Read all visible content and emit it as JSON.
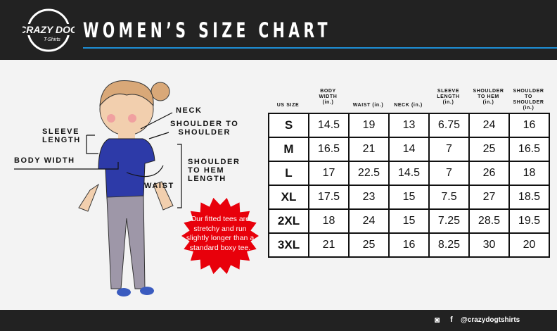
{
  "header": {
    "title": "WOMEN’S SIZE CHART",
    "logo_text": "CRAZY DOG T-Shirts"
  },
  "diagram": {
    "labels": {
      "neck": "NECK",
      "shoulder_to_shoulder": [
        "SHOULDER TO",
        "SHOULDER"
      ],
      "sleeve_length": [
        "SLEEVE",
        "LENGTH"
      ],
      "body_width": "BODY WIDTH",
      "shoulder_to_hem": [
        "SHOULDER",
        "TO HEM",
        "LENGTH"
      ],
      "waist": "WAIST"
    },
    "note": "Our fitted tees are stretchy and run slightly longer than a standard boxy tee."
  },
  "table": {
    "headers": [
      [
        "US SIZE"
      ],
      [
        "BODY",
        "WIDTH",
        "(in.)"
      ],
      [
        "WAIST (in.)"
      ],
      [
        "NECK (in.)"
      ],
      [
        "SLEEVE",
        "LENGTH",
        "(in.)"
      ],
      [
        "SHOULDER",
        "TO HEM",
        "(in.)"
      ],
      [
        "SHOULDER TO",
        "SHOULDER",
        "(in.)"
      ]
    ],
    "rows": [
      [
        "S",
        "14.5",
        "19",
        "13",
        "6.75",
        "24",
        "16"
      ],
      [
        "M",
        "16.5",
        "21",
        "14",
        "7",
        "25",
        "16.5"
      ],
      [
        "L",
        "17",
        "22.5",
        "14.5",
        "7",
        "26",
        "18"
      ],
      [
        "XL",
        "17.5",
        "23",
        "15",
        "7.5",
        "27",
        "18.5"
      ],
      [
        "2XL",
        "18",
        "24",
        "15",
        "7.25",
        "28.5",
        "19.5"
      ],
      [
        "3XL",
        "21",
        "25",
        "16",
        "8.25",
        "30",
        "20"
      ]
    ]
  },
  "footer": {
    "handle": "@crazydogtshirts",
    "icons": [
      "instagram-icon",
      "facebook-icon"
    ]
  },
  "colors": {
    "header_bg": "#222222",
    "accent_blue": "#1e8fd6",
    "burst_red": "#e8000b",
    "shirt_blue": "#2d3aa8"
  }
}
